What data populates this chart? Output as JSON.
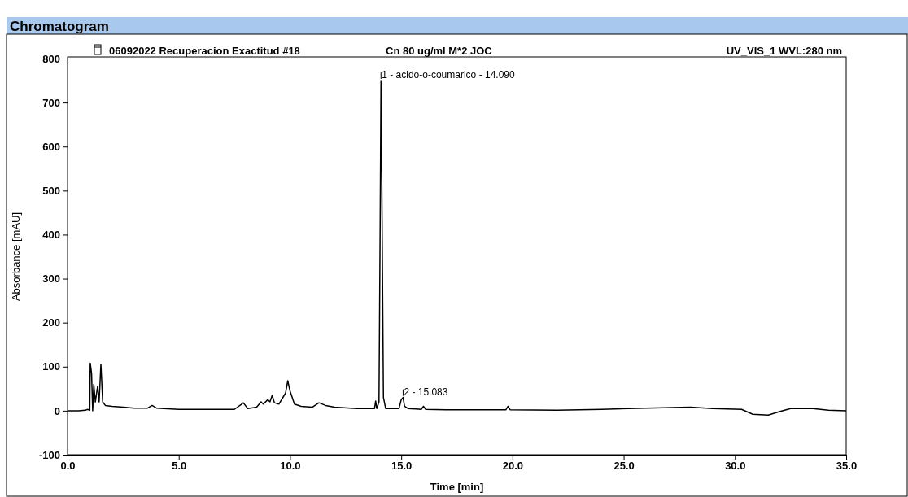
{
  "chart_data": {
    "type": "line",
    "title": "Chromatogram",
    "xlabel": "Time [min]",
    "ylabel": "Absorbance [mAU]",
    "annotations": [
      "06092022 Recuperacion Exactitud #18",
      "Cn 80 ug/ml M*2 JOC",
      "UV_VIS_1 WVL:280 nm",
      {
        "text": "1 - acido-o-coumarico - 14.090",
        "x": 14.09,
        "y": 750
      },
      {
        "text": "2 - 15.083",
        "x": 15.083,
        "y": 30
      }
    ],
    "x": [
      0,
      0.5,
      0.8,
      0.9,
      1.0,
      1.02,
      1.08,
      1.13,
      1.18,
      1.25,
      1.35,
      1.42,
      1.5,
      1.58,
      1.7,
      2.0,
      2.5,
      3.0,
      3.6,
      3.8,
      4.0,
      5.0,
      7.5,
      7.8,
      7.9,
      8.1,
      8.5,
      8.7,
      8.8,
      9.0,
      9.1,
      9.2,
      9.3,
      9.5,
      9.8,
      9.9,
      10.0,
      10.2,
      10.5,
      11.0,
      11.3,
      11.6,
      12.0,
      13.0,
      13.8,
      13.85,
      13.9,
      14.0,
      14.05,
      14.09,
      14.13,
      14.2,
      14.3,
      14.9,
      15.0,
      15.08,
      15.15,
      15.3,
      15.9,
      16.0,
      16.1,
      17.0,
      19.7,
      19.8,
      19.9,
      22.0,
      24.0,
      26.0,
      28.0,
      29.0,
      30.3,
      30.8,
      31.5,
      32.0,
      32.5,
      33.5,
      34.2,
      35.0
    ],
    "series": [
      {
        "color": "#000000",
        "values": [
          0,
          0,
          1,
          3,
          1,
          108,
          85,
          0,
          60,
          20,
          55,
          20,
          105,
          20,
          12,
          10,
          8,
          6,
          6,
          12,
          6,
          3,
          3,
          14,
          18,
          5,
          8,
          20,
          15,
          25,
          20,
          35,
          18,
          15,
          40,
          68,
          45,
          15,
          10,
          8,
          18,
          12,
          8,
          5,
          5,
          22,
          5,
          20,
          400,
          750,
          500,
          30,
          5,
          5,
          25,
          30,
          10,
          5,
          3,
          10,
          3,
          2,
          2,
          10,
          2,
          1,
          3,
          6,
          8,
          5,
          3,
          -8,
          -10,
          -2,
          5,
          5,
          1,
          0
        ]
      }
    ],
    "xlim": [
      0,
      35
    ],
    "ylim": [
      -100,
      800
    ],
    "xticks": [
      {
        "value": 0,
        "label": "0.0"
      },
      {
        "value": 5,
        "label": "5.0"
      },
      {
        "value": 10,
        "label": "10.0"
      },
      {
        "value": 15,
        "label": "15.0"
      },
      {
        "value": 20,
        "label": "20.0"
      },
      {
        "value": 25,
        "label": "25.0"
      },
      {
        "value": 30,
        "label": "30.0"
      },
      {
        "value": 35,
        "label": "35.0"
      }
    ],
    "yticks": [
      -100,
      0,
      100,
      200,
      300,
      400,
      500,
      600,
      700,
      800
    ],
    "grid": false
  }
}
